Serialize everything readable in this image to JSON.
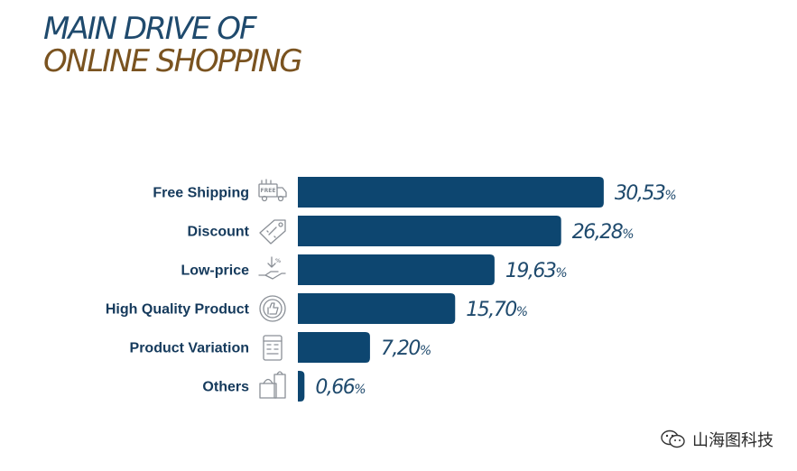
{
  "header": {
    "title_line1": "MAIN DRIVE OF",
    "title_line2": "ONLINE SHOPPING"
  },
  "chart_data": {
    "type": "bar",
    "orientation": "horizontal",
    "categories": [
      "Free Shipping",
      "Discount",
      "Low-price",
      "High Quality Product",
      "Product Variation",
      "Others"
    ],
    "values": [
      30.53,
      26.28,
      19.63,
      15.7,
      7.2,
      0.66
    ],
    "value_labels": [
      "30,53",
      "26,28",
      "19,63",
      "15,70",
      "7,20",
      "0,66"
    ],
    "unit": "%",
    "icons": [
      "free-shipping-truck-icon",
      "discount-tag-icon",
      "low-price-hand-icon",
      "thumbs-up-quality-icon",
      "store-variation-icon",
      "shopping-bags-icon"
    ],
    "bar_color": "#0d4670",
    "xlim": [
      0,
      33
    ],
    "grid": false,
    "legend": "none"
  },
  "watermark": {
    "text": "山海图科技",
    "icon": "wechat-icon"
  }
}
